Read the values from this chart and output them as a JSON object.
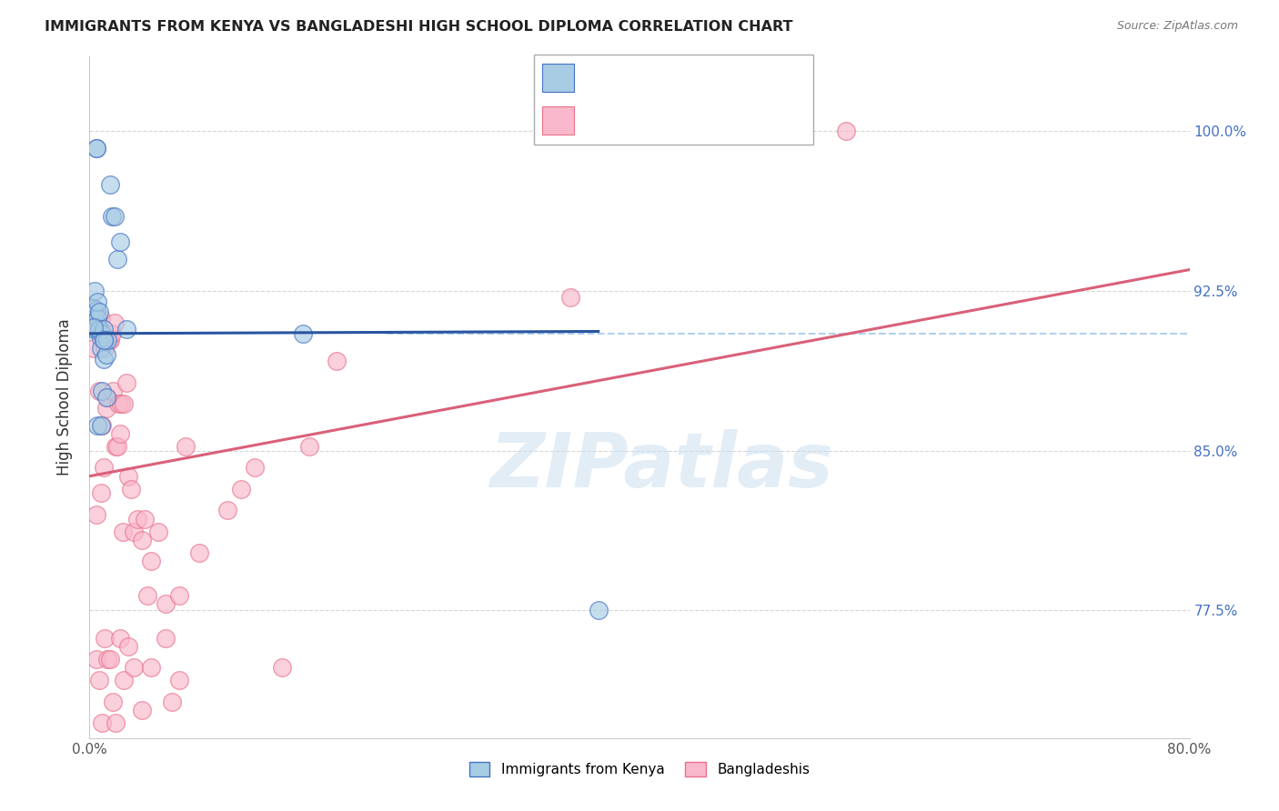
{
  "title": "IMMIGRANTS FROM KENYA VS BANGLADESHI HIGH SCHOOL DIPLOMA CORRELATION CHART",
  "source": "Source: ZipAtlas.com",
  "ylabel": "High School Diploma",
  "xlim": [
    0.0,
    0.8
  ],
  "ylim": [
    0.715,
    1.035
  ],
  "yticks": [
    0.775,
    0.85,
    0.925,
    1.0
  ],
  "ytick_labels": [
    "77.5%",
    "85.0%",
    "92.5%",
    "100.0%"
  ],
  "xticks": [
    0.0,
    0.8
  ],
  "xtick_labels": [
    "0.0%",
    "80.0%"
  ],
  "legend_label1": "Immigrants from Kenya",
  "legend_label2": "Bangladeshis",
  "watermark_text": "ZIPatlas",
  "blue_color": "#a8cce4",
  "pink_color": "#f9b8cb",
  "blue_edge_color": "#4472c4",
  "pink_edge_color": "#e8728a",
  "blue_line_color": "#2855a0",
  "pink_line_color": "#d9607a",
  "dashed_line_color": "#aaccee",
  "dashed_line_y": 0.905,
  "blue_trend_x": [
    0.0,
    0.37
  ],
  "blue_trend_y": [
    0.905,
    0.906
  ],
  "pink_trend_x": [
    0.0,
    0.8
  ],
  "pink_trend_y": [
    0.838,
    0.935
  ],
  "blue_scatter_x": [
    0.002,
    0.003,
    0.003,
    0.004,
    0.004,
    0.005,
    0.005,
    0.006,
    0.006,
    0.007,
    0.007,
    0.008,
    0.008,
    0.009,
    0.01,
    0.01,
    0.011,
    0.012,
    0.013,
    0.015,
    0.016,
    0.018,
    0.02,
    0.022,
    0.027,
    0.003,
    0.005,
    0.005,
    0.006,
    0.008,
    0.009,
    0.01,
    0.012,
    0.155,
    0.37
  ],
  "blue_scatter_y": [
    0.908,
    0.907,
    0.917,
    0.912,
    0.925,
    0.916,
    0.908,
    0.912,
    0.92,
    0.907,
    0.915,
    0.903,
    0.898,
    0.905,
    0.907,
    0.893,
    0.902,
    0.895,
    0.902,
    0.975,
    0.96,
    0.96,
    0.94,
    0.948,
    0.907,
    0.908,
    0.992,
    0.992,
    0.862,
    0.862,
    0.878,
    0.902,
    0.875,
    0.905,
    0.775
  ],
  "pink_scatter_x": [
    0.003,
    0.005,
    0.007,
    0.008,
    0.009,
    0.01,
    0.011,
    0.012,
    0.013,
    0.014,
    0.015,
    0.016,
    0.017,
    0.018,
    0.019,
    0.02,
    0.021,
    0.022,
    0.023,
    0.024,
    0.025,
    0.027,
    0.028,
    0.03,
    0.032,
    0.035,
    0.038,
    0.04,
    0.042,
    0.045,
    0.05,
    0.055,
    0.06,
    0.065,
    0.07,
    0.08,
    0.1,
    0.11,
    0.12,
    0.14,
    0.16,
    0.18,
    0.005,
    0.007,
    0.009,
    0.011,
    0.013,
    0.015,
    0.017,
    0.019,
    0.022,
    0.025,
    0.028,
    0.032,
    0.038,
    0.045,
    0.055,
    0.065,
    0.35,
    0.55,
    0.005,
    0.008
  ],
  "pink_scatter_y": [
    0.898,
    0.91,
    0.878,
    0.912,
    0.862,
    0.842,
    0.898,
    0.87,
    0.875,
    0.902,
    0.902,
    0.905,
    0.878,
    0.91,
    0.852,
    0.852,
    0.872,
    0.858,
    0.872,
    0.812,
    0.872,
    0.882,
    0.838,
    0.832,
    0.812,
    0.818,
    0.808,
    0.818,
    0.782,
    0.798,
    0.812,
    0.778,
    0.732,
    0.782,
    0.852,
    0.802,
    0.822,
    0.832,
    0.842,
    0.748,
    0.852,
    0.892,
    0.752,
    0.742,
    0.722,
    0.762,
    0.752,
    0.752,
    0.732,
    0.722,
    0.762,
    0.742,
    0.758,
    0.748,
    0.728,
    0.748,
    0.762,
    0.742,
    0.922,
    1.0,
    0.82,
    0.83
  ]
}
